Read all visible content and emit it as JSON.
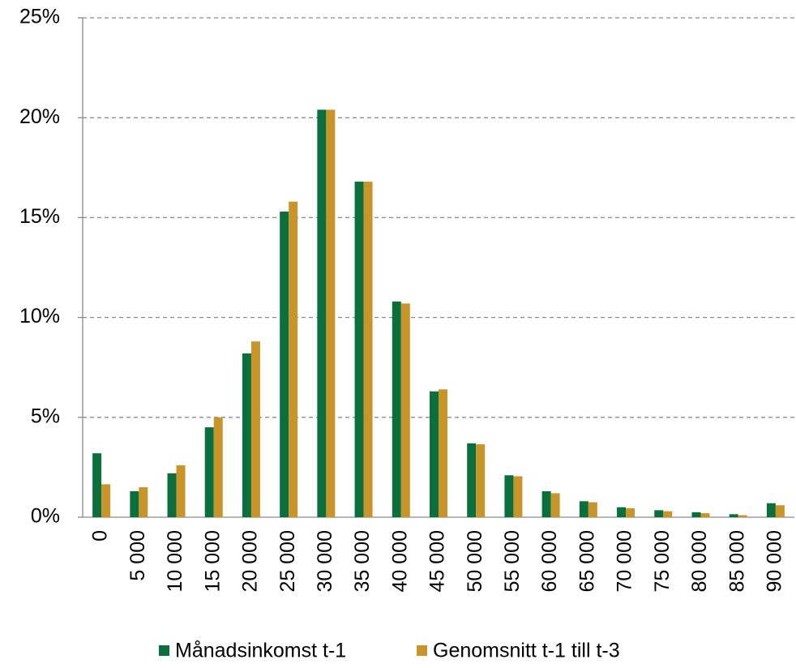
{
  "chart_data": {
    "type": "bar",
    "categories": [
      "0",
      "5 000",
      "10 000",
      "15 000",
      "20 000",
      "25 000",
      "30 000",
      "35 000",
      "40 000",
      "45 000",
      "50 000",
      "55 000",
      "60 000",
      "65 000",
      "70 000",
      "75 000",
      "80 000",
      "85 000",
      "90 000"
    ],
    "series": [
      {
        "name": "Månadsinkomst t-1",
        "color": "#0b6e3d",
        "values": [
          3.2,
          1.3,
          2.2,
          4.5,
          8.2,
          15.3,
          20.4,
          16.8,
          10.8,
          6.3,
          3.7,
          2.1,
          1.3,
          0.8,
          0.5,
          0.35,
          0.25,
          0.15,
          0.7
        ]
      },
      {
        "name": "Genomsnitt t-1 till t-3",
        "color": "#c8952b",
        "values": [
          1.65,
          1.5,
          2.6,
          5.0,
          8.8,
          15.8,
          20.4,
          16.8,
          10.7,
          6.4,
          3.65,
          2.05,
          1.2,
          0.75,
          0.45,
          0.3,
          0.2,
          0.1,
          0.6
        ]
      }
    ],
    "ylim": [
      0,
      25
    ],
    "yticks": [
      {
        "value": 0,
        "label": "0%"
      },
      {
        "value": 5,
        "label": "5%"
      },
      {
        "value": 10,
        "label": "10%"
      },
      {
        "value": 15,
        "label": "15%"
      },
      {
        "value": 20,
        "label": "20%"
      },
      {
        "value": 25,
        "label": "25%"
      }
    ],
    "grid": true,
    "legend": "bottom"
  }
}
